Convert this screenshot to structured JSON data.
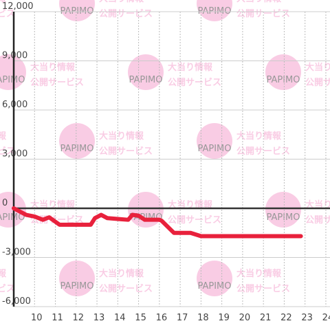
{
  "chart_data": {
    "type": "line",
    "watermark": {
      "brand": "PAPIMO",
      "line1": "大当り情報",
      "line2": "公開サービス"
    },
    "x": [
      9,
      9.6,
      10,
      10.4,
      10.7,
      11.2,
      12.7,
      12.9,
      13.2,
      13.5,
      14,
      14.5,
      14.7,
      15,
      15.3,
      16,
      16.1,
      16.7,
      17.5,
      18,
      22.8
    ],
    "series": [
      {
        "color": "#e8213c",
        "values": [
          0,
          -400,
          -500,
          -700,
          -550,
          -1000,
          -1000,
          -600,
          -400,
          -600,
          -650,
          -700,
          -400,
          -450,
          -700,
          -700,
          -750,
          -1500,
          -1500,
          -1700,
          -1700
        ]
      }
    ],
    "xlim": [
      9,
      24.2
    ],
    "xticks": [
      10,
      11,
      12,
      13,
      14,
      15,
      16,
      17,
      18,
      19,
      20,
      21,
      22,
      23,
      24
    ],
    "ylim": [
      -6000,
      12000
    ],
    "yticks": [
      {
        "value": -6000,
        "label": "-6,000"
      },
      {
        "value": -3000,
        "label": "-3,000"
      },
      0,
      {
        "value": 3000,
        "label": "3,000"
      },
      {
        "value": 6000,
        "label": "6,000"
      },
      {
        "value": 9000,
        "label": "9,000"
      },
      {
        "value": 12000,
        "label": "12,000"
      }
    ],
    "grid": true
  }
}
